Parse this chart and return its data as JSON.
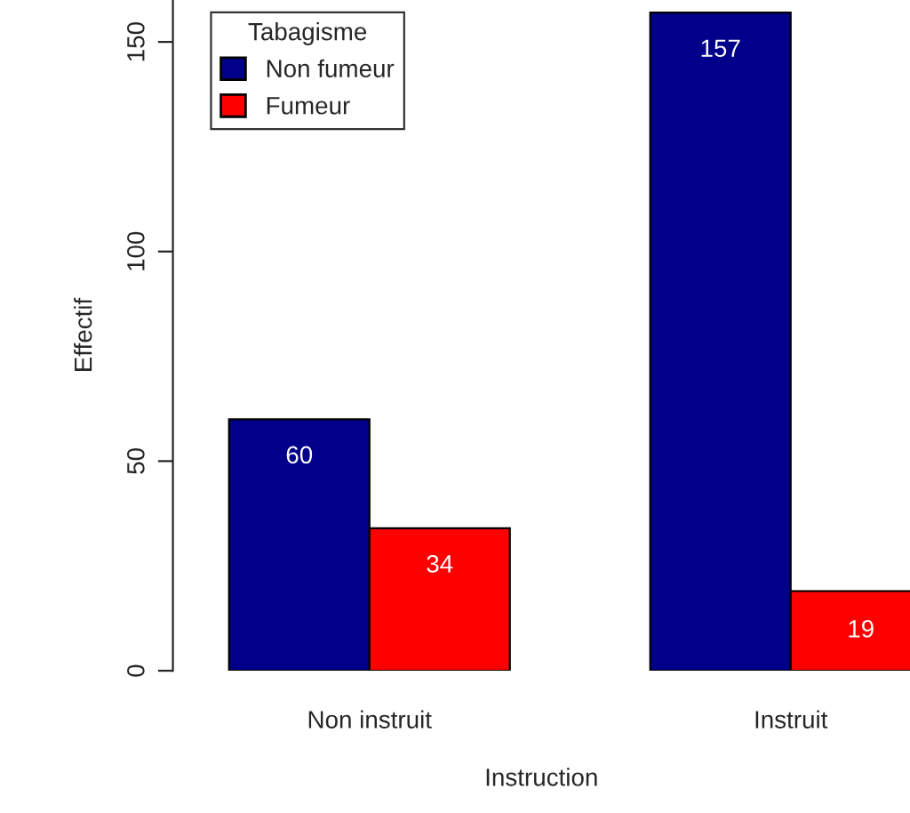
{
  "chart_data": {
    "type": "bar",
    "xlabel": "Instruction",
    "ylabel": "Effectif",
    "legend_title": "Tabagisme",
    "categories": [
      "Non instruit",
      "Instruit"
    ],
    "series": [
      {
        "name": "Non fumeur",
        "color": "#00008b",
        "values": [
          60,
          157
        ]
      },
      {
        "name": "Fumeur",
        "color": "#ff0000",
        "values": [
          34,
          19
        ]
      }
    ],
    "ylim": [
      0,
      160
    ],
    "yticks": [
      0,
      50,
      100,
      150
    ],
    "data_labels": true,
    "legend": "top left",
    "grid": false
  }
}
